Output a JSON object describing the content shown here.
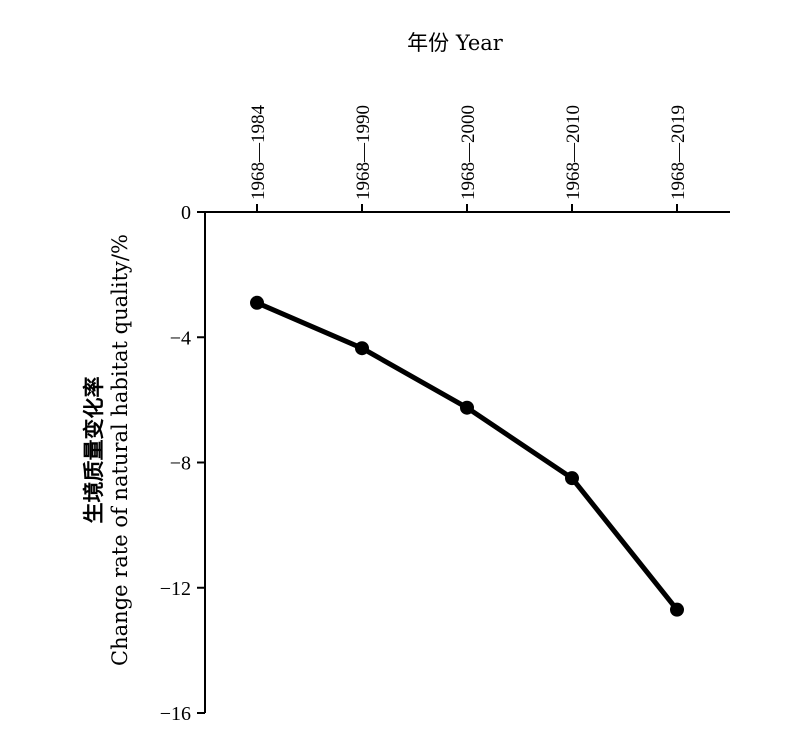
{
  "chart_data": {
    "type": "line",
    "categories": [
      "1968—1984",
      "1968—1990",
      "1968—2000",
      "1968—2010",
      "1968—2019"
    ],
    "series": [
      {
        "values": [
          -2.9,
          -4.35,
          -6.25,
          -8.5,
          -12.7
        ]
      }
    ],
    "xlabel": "年份 Year",
    "ylabel_cn": "生境质量变化率",
    "ylabel": "Change rate of natural habitat quality/%",
    "ylim": [
      -16,
      0
    ],
    "yticks": [
      0,
      -4,
      -8,
      -12,
      -16
    ],
    "x_axis_position": "top",
    "grid": false,
    "legend": false,
    "line_color": "#000000",
    "marker": "circle"
  }
}
